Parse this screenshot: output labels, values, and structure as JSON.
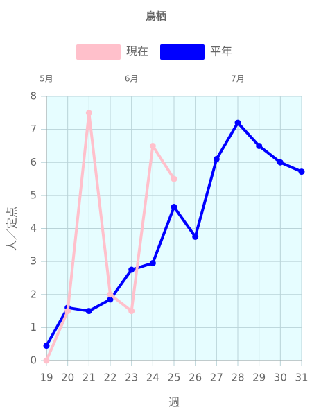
{
  "chart_data": {
    "type": "line",
    "title": "鳥栖",
    "x": [
      19,
      20,
      21,
      22,
      23,
      24,
      25,
      26,
      27,
      28,
      29,
      30,
      31
    ],
    "series": [
      {
        "name": "現在",
        "color": "#ffc0cb",
        "values": [
          0,
          1.5,
          7.5,
          2.0,
          1.5,
          6.5,
          5.5,
          null,
          null,
          null,
          null,
          null,
          null
        ]
      },
      {
        "name": "平年",
        "color": "#0000ff",
        "values": [
          0.45,
          1.6,
          1.5,
          1.85,
          2.75,
          2.95,
          4.65,
          3.75,
          6.1,
          7.2,
          6.5,
          6.0,
          5.72
        ]
      }
    ],
    "xlim": [
      19,
      31
    ],
    "xticks": [
      19,
      20,
      21,
      22,
      23,
      24,
      25,
      26,
      27,
      28,
      29,
      30,
      31
    ],
    "x2ticks": [
      {
        "value": 19,
        "label": "5月"
      },
      {
        "value": 23,
        "label": "6月"
      },
      {
        "value": 28,
        "label": "7月"
      }
    ],
    "ylim": [
      0,
      8
    ],
    "yticks": [
      0,
      1,
      2,
      3,
      4,
      5,
      6,
      7,
      8
    ],
    "xlabel": "週",
    "ylabel": "人／定点",
    "grid": true,
    "background": "#e6fdff"
  }
}
